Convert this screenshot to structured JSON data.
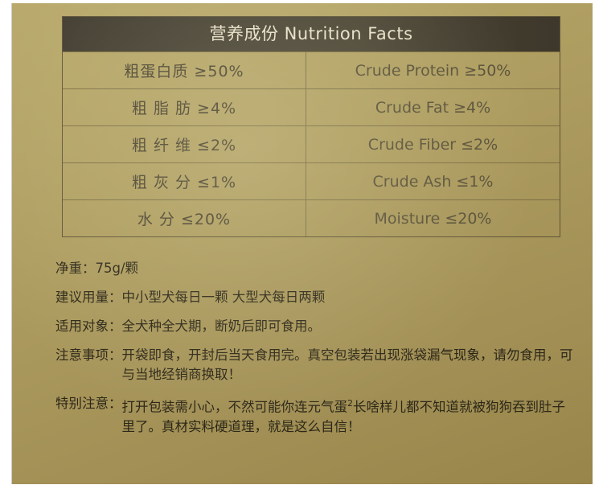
{
  "table": {
    "title": "营养成份 Nutrition Facts",
    "rows": [
      {
        "cn": "粗蛋白质 ≥50%",
        "en": "Crude Protein ≥50%"
      },
      {
        "cn": "粗 脂 肪 ≥4%",
        "en": "Crude Fat ≥4%"
      },
      {
        "cn": "粗 纤 维 ≤2%",
        "en": "Crude Fiber ≤2%"
      },
      {
        "cn": "粗 灰 分 ≤1%",
        "en": "Crude Ash ≤1%"
      },
      {
        "cn": "水 分 ≤20%",
        "en": "Moisture ≤20%"
      }
    ]
  },
  "notes": [
    {
      "label": "净重：",
      "text": "75g/颗"
    },
    {
      "label": "建议用量：",
      "text": "中小型犬每日一颗 大型犬每日两颗"
    },
    {
      "label": "适用对象：",
      "text": "全犬种全犬期，断奶后即可食用。"
    },
    {
      "label": "注意事项：",
      "text": "开袋即食，开封后当天食用完。真空包装若出现涨袋漏气现象，请勿食用，可与当地经销商换取！"
    },
    {
      "label": "特别注意：",
      "text_before": "打开包装需小心，不然可能你连元气蛋",
      "sup": "2",
      "text_after": "长啥样儿都不知道就被狗狗吞到肚子里了。真材实料硬道理，就是这么自信！"
    }
  ]
}
